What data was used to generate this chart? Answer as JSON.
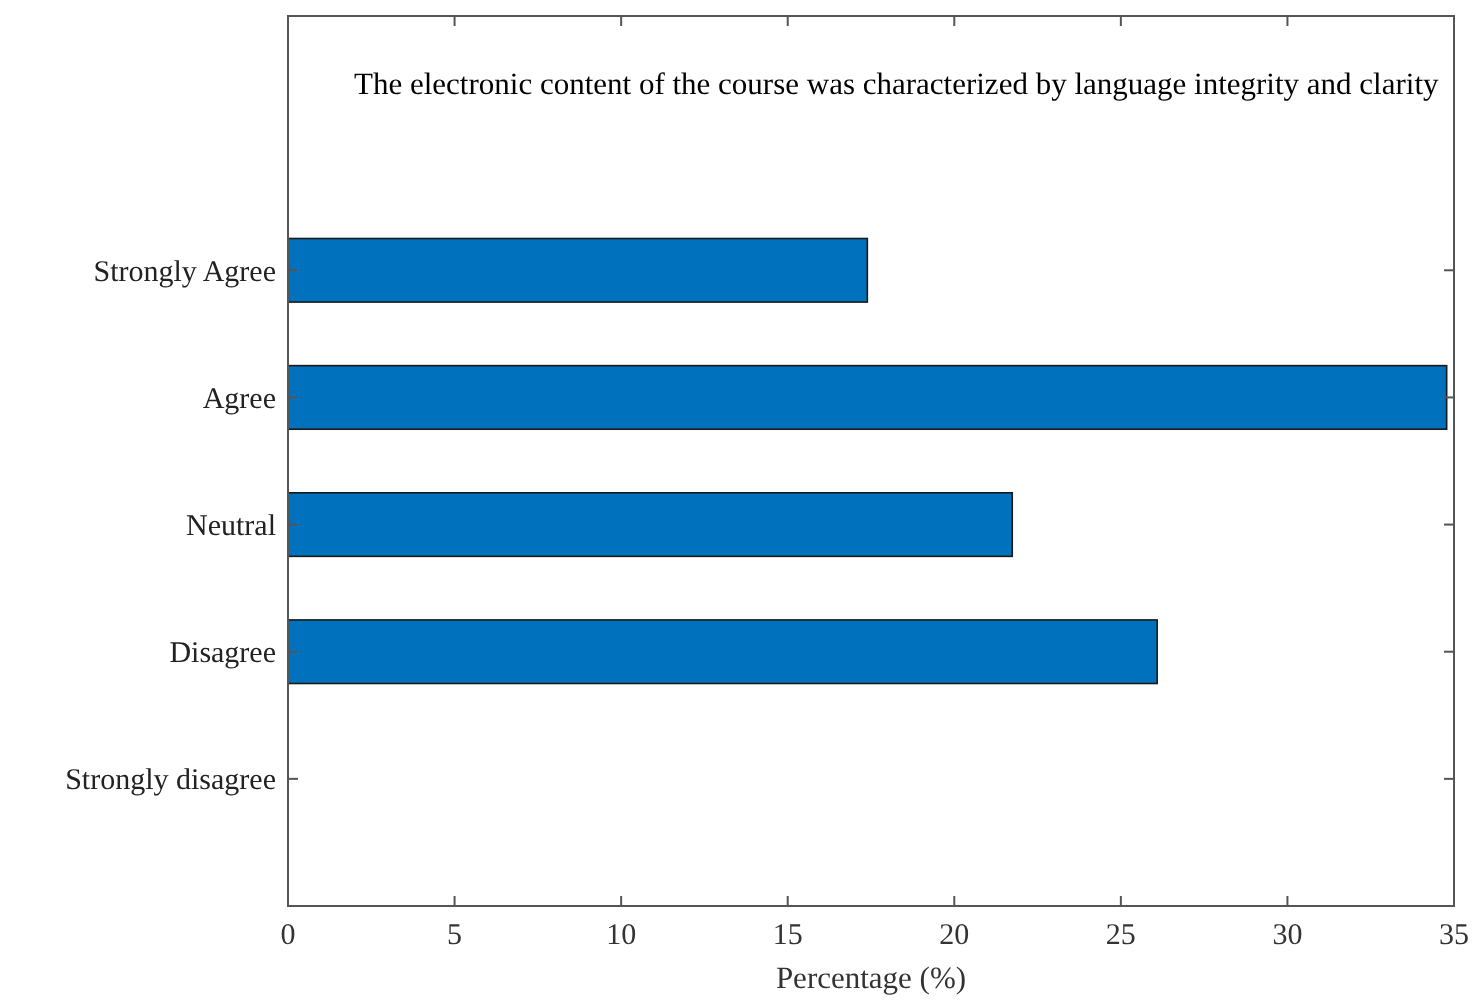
{
  "chart_data": {
    "type": "bar",
    "orientation": "horizontal",
    "title": "The electronic content of the course was characterized by language integrity and clarity",
    "xlabel": "Percentage (%)",
    "categories": [
      "Strongly Agree",
      "Agree",
      "Neutral",
      "Disagree",
      "Strongly disagree"
    ],
    "values": [
      17.39,
      34.78,
      21.74,
      26.09,
      0
    ],
    "color": "#0072bd",
    "xlim": [
      0,
      35
    ],
    "xticks": [
      0,
      5,
      10,
      15,
      20,
      25,
      30,
      35
    ],
    "grid": false
  }
}
